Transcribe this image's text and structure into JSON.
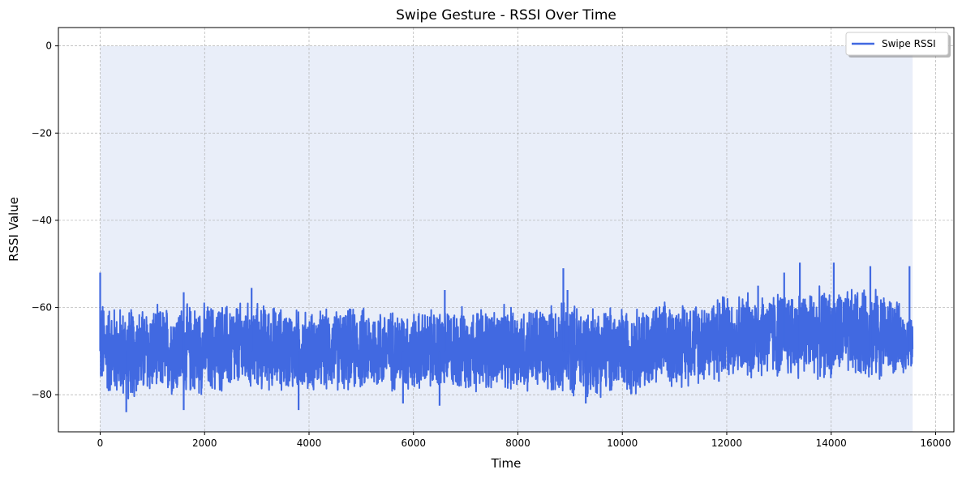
{
  "chart_data": {
    "type": "line",
    "title": "Swipe Gesture - RSSI Over Time",
    "xlabel": "Time",
    "ylabel": "RSSI Value",
    "xlim": [
      -800,
      16350
    ],
    "ylim": [
      -88.5,
      4.2
    ],
    "xticks": [
      0,
      2000,
      4000,
      6000,
      8000,
      10000,
      12000,
      14000,
      16000
    ],
    "xtick_labels": [
      "0",
      "2000",
      "4000",
      "6000",
      "8000",
      "10000",
      "12000",
      "14000",
      "16000"
    ],
    "yticks": [
      0,
      -20,
      -40,
      -60,
      -80
    ],
    "ytick_labels": [
      "0",
      "−20",
      "−40",
      "−60",
      "−80"
    ],
    "grid": true,
    "legend_position": "top-right",
    "fill_between": {
      "x_start": 0,
      "x_end": 15560,
      "y_top": 0,
      "color": "#e9eef9"
    },
    "series": [
      {
        "name": "Swipe RSSI",
        "color": "#4169e1",
        "n_points": 15560,
        "x_start": 0,
        "x_end": 15560,
        "envelope": {
          "x": [
            0,
            10,
            100,
            500,
            1000,
            2000,
            3000,
            4000,
            5000,
            6000,
            7000,
            8000,
            9000,
            10000,
            11000,
            11500,
            12000,
            13000,
            14000,
            15000,
            15560
          ],
          "upper": [
            -52,
            -57,
            -58,
            -59,
            -59,
            -58,
            -58,
            -60,
            -59,
            -60,
            -59,
            -59,
            -58,
            -59,
            -58,
            -57,
            -56,
            -55,
            -55,
            -55,
            -62
          ],
          "lower": [
            -78,
            -80,
            -81,
            -82,
            -81,
            -81,
            -80,
            -80,
            -80,
            -80,
            -80,
            -80,
            -81,
            -81,
            -79,
            -78,
            -77,
            -77,
            -77,
            -77,
            -75
          ]
        },
        "spikes_high": [
          [
            0,
            -52
          ],
          [
            1600,
            -56.5
          ],
          [
            2900,
            -55.5
          ],
          [
            6600,
            -56
          ],
          [
            8870,
            -51
          ],
          [
            8950,
            -56
          ],
          [
            12600,
            -55
          ],
          [
            13100,
            -52
          ],
          [
            13400,
            -49.7
          ],
          [
            14050,
            -49.7
          ],
          [
            14750,
            -50.5
          ],
          [
            15500,
            -50.5
          ]
        ],
        "spikes_low": [
          [
            500,
            -84
          ],
          [
            1600,
            -83.5
          ],
          [
            3800,
            -83.5
          ],
          [
            6500,
            -82.5
          ],
          [
            5800,
            -82
          ],
          [
            9300,
            -82
          ],
          [
            11850,
            -77
          ]
        ]
      }
    ]
  }
}
